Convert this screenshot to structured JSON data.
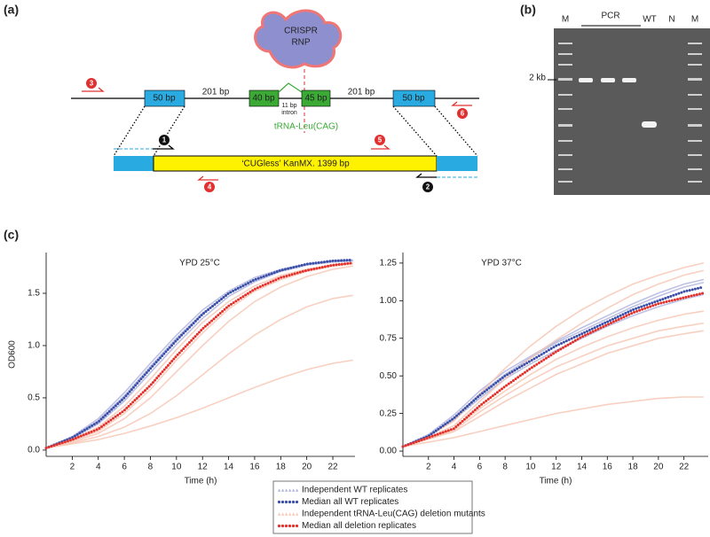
{
  "figure": {
    "panel_a": "(a)",
    "panel_b": "(b)",
    "panel_c": "(c)"
  },
  "diagram": {
    "rnp": [
      "CRISPR",
      "RNP"
    ],
    "blocks": [
      "50 bp",
      "201 bp",
      "40 bp",
      "45 bp",
      "201 bp",
      "50 bp"
    ],
    "intron": [
      "11 bp",
      "intron"
    ],
    "gene": "tRNA-Leu(CAG)",
    "cassette": "‘CUGless’ KanMX. 1399 bp",
    "primers": [
      "1",
      "2",
      "3",
      "4",
      "5",
      "6"
    ]
  },
  "gel": {
    "lanes": [
      "M",
      "PCR",
      "WT",
      "N",
      "M"
    ],
    "size": "2 kb"
  },
  "chart_data": [
    {
      "type": "line",
      "title": "YPD 25°C",
      "xlabel": "Time (h)",
      "ylabel": "OD600",
      "x": [
        0,
        2,
        4,
        6,
        8,
        10,
        12,
        14,
        16,
        18,
        20,
        22,
        23.5
      ],
      "xlim": [
        0,
        23.7
      ],
      "xticks": [
        2,
        4,
        6,
        8,
        10,
        12,
        14,
        16,
        18,
        20,
        22
      ],
      "ylim": [
        -0.06,
        1.89
      ],
      "yticks": [
        {
          "value": 0,
          "label": "0.0"
        },
        0.5,
        {
          "value": 1,
          "label": "1.0"
        },
        1.5
      ],
      "series": [
        {
          "name": "Independent WT replicates",
          "color": "#aeb2dd",
          "marker": "triangle",
          "values": [
            [
              0.02,
              0.13,
              0.3,
              0.55,
              0.83,
              1.1,
              1.34,
              1.52,
              1.65,
              1.73,
              1.78,
              1.8,
              1.81
            ],
            [
              0.02,
              0.11,
              0.25,
              0.47,
              0.74,
              1.01,
              1.26,
              1.47,
              1.61,
              1.71,
              1.77,
              1.8,
              1.81
            ],
            [
              0.02,
              0.12,
              0.28,
              0.52,
              0.8,
              1.07,
              1.31,
              1.5,
              1.63,
              1.72,
              1.78,
              1.81,
              1.82
            ]
          ]
        },
        {
          "name": "Median all WT replicates",
          "color": "#3a4fa8",
          "marker": "dot",
          "values": [
            0.02,
            0.12,
            0.27,
            0.5,
            0.78,
            1.05,
            1.3,
            1.5,
            1.63,
            1.72,
            1.78,
            1.81,
            1.82
          ]
        },
        {
          "name": "Independent tRNA-Leu(CAG) deletion mutants",
          "color": "#f6c4b2",
          "marker": "triangle",
          "values": [
            [
              0.02,
              0.1,
              0.22,
              0.42,
              0.68,
              0.96,
              1.22,
              1.42,
              1.57,
              1.67,
              1.73,
              1.77,
              1.79
            ],
            [
              0.02,
              0.09,
              0.18,
              0.35,
              0.58,
              0.86,
              1.12,
              1.35,
              1.52,
              1.63,
              1.71,
              1.76,
              1.78
            ],
            [
              0.02,
              0.08,
              0.16,
              0.3,
              0.5,
              0.75,
              1.0,
              1.23,
              1.42,
              1.56,
              1.66,
              1.73,
              1.76
            ],
            [
              0.02,
              0.07,
              0.13,
              0.22,
              0.35,
              0.52,
              0.72,
              0.92,
              1.1,
              1.25,
              1.37,
              1.45,
              1.48
            ],
            [
              0.02,
              0.06,
              0.1,
              0.16,
              0.23,
              0.31,
              0.4,
              0.5,
              0.6,
              0.69,
              0.77,
              0.83,
              0.86
            ]
          ]
        },
        {
          "name": "Median all deletion replicates",
          "color": "#e3302a",
          "marker": "dot",
          "values": [
            0.02,
            0.1,
            0.2,
            0.38,
            0.62,
            0.9,
            1.16,
            1.38,
            1.54,
            1.65,
            1.72,
            1.77,
            1.79
          ]
        }
      ]
    },
    {
      "type": "line",
      "title": "YPD 37°C",
      "xlabel": "Time (h)",
      "x": [
        0,
        2,
        4,
        6,
        8,
        10,
        12,
        14,
        16,
        18,
        20,
        22,
        23.5
      ],
      "xlim": [
        0,
        23.9
      ],
      "xticks": [
        2,
        4,
        6,
        8,
        10,
        12,
        14,
        16,
        18,
        20,
        22
      ],
      "ylim": [
        -0.035,
        1.32
      ],
      "yticks": [
        {
          "value": 0,
          "label": "0.00"
        },
        0.25,
        {
          "value": 0.5,
          "label": "0.50"
        },
        0.75,
        {
          "value": 1,
          "label": "1.00"
        },
        1.25
      ],
      "series": [
        {
          "color": "#aeb2dd",
          "marker": "triangle",
          "values": [
            [
              0.03,
              0.11,
              0.24,
              0.4,
              0.53,
              0.63,
              0.73,
              0.82,
              0.9,
              0.98,
              1.05,
              1.11,
              1.14
            ],
            [
              0.03,
              0.1,
              0.21,
              0.35,
              0.48,
              0.58,
              0.67,
              0.75,
              0.83,
              0.9,
              0.96,
              1.01,
              1.04
            ],
            [
              0.03,
              0.1,
              0.22,
              0.38,
              0.51,
              0.62,
              0.72,
              0.8,
              0.88,
              0.96,
              1.03,
              1.09,
              1.12
            ]
          ]
        },
        {
          "color": "#3a4fa8",
          "marker": "dot",
          "values": [
            0.03,
            0.1,
            0.22,
            0.37,
            0.5,
            0.6,
            0.7,
            0.78,
            0.86,
            0.94,
            1.0,
            1.06,
            1.09
          ]
        },
        {
          "color": "#f6c4b2",
          "marker": "triangle",
          "values": [
            [
              0.03,
              0.1,
              0.2,
              0.38,
              0.55,
              0.7,
              0.83,
              0.94,
              1.03,
              1.11,
              1.17,
              1.22,
              1.25
            ],
            [
              0.03,
              0.09,
              0.17,
              0.33,
              0.48,
              0.62,
              0.74,
              0.85,
              0.95,
              1.04,
              1.11,
              1.17,
              1.2
            ],
            [
              0.03,
              0.09,
              0.15,
              0.28,
              0.4,
              0.51,
              0.61,
              0.69,
              0.76,
              0.82,
              0.87,
              0.91,
              0.93
            ],
            [
              0.03,
              0.08,
              0.14,
              0.26,
              0.37,
              0.47,
              0.56,
              0.63,
              0.7,
              0.75,
              0.8,
              0.83,
              0.85
            ],
            [
              0.03,
              0.08,
              0.13,
              0.23,
              0.33,
              0.42,
              0.51,
              0.58,
              0.65,
              0.7,
              0.75,
              0.78,
              0.8
            ],
            [
              0.03,
              0.06,
              0.09,
              0.13,
              0.17,
              0.21,
              0.25,
              0.28,
              0.31,
              0.33,
              0.35,
              0.36,
              0.36
            ]
          ]
        },
        {
          "color": "#e3302a",
          "marker": "dot",
          "values": [
            0.03,
            0.09,
            0.15,
            0.3,
            0.43,
            0.55,
            0.66,
            0.76,
            0.84,
            0.92,
            0.98,
            1.02,
            1.05
          ]
        }
      ]
    }
  ]
}
